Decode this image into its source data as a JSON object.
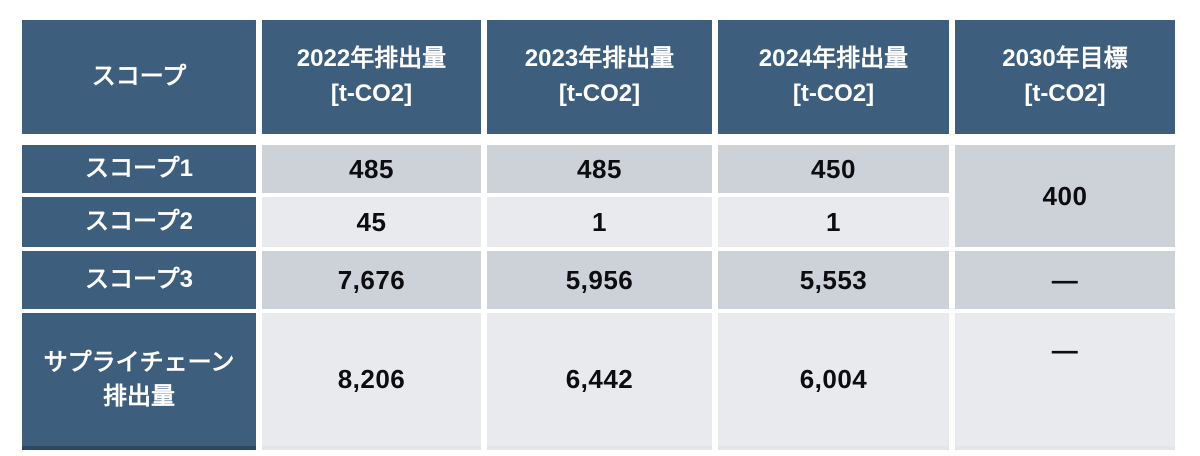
{
  "colors": {
    "header_blue": "#3D5E7D",
    "header_blue_bottom_edge": "#2C4861",
    "row_gray_dark": "#CDD1D8",
    "row_gray_light": "#E9EAED",
    "header_text": "#FFFFFF",
    "value_text": "#0D0D10",
    "page_background": "#FFFFFF"
  },
  "chart_data": {
    "type": "table",
    "columns": [
      "スコープ",
      "2022年排出量\n[t-CO2]",
      "2023年排出量\n[t-CO2]",
      "2024年排出量\n[t-CO2]",
      "2030年目標\n[t-CO2]"
    ],
    "rows": [
      {
        "label": "スコープ1",
        "values": [
          "485",
          "485",
          "450"
        ]
      },
      {
        "label": "スコープ2",
        "values": [
          "45",
          "1",
          "1"
        ]
      },
      {
        "label": "スコープ3",
        "values": [
          "7,676",
          "5,956",
          "5,553"
        ],
        "target": "―"
      },
      {
        "label": "サプライチェーン\n排出量",
        "values": [
          "8,206",
          "6,442",
          "6,004"
        ],
        "target": "―"
      }
    ],
    "merged_target": {
      "value": "400",
      "note_rows_spanned": [
        "スコープ1",
        "スコープ2"
      ]
    },
    "numeric": {
      "x": [
        "2022",
        "2023",
        "2024"
      ],
      "unit": "t-CO2",
      "series": [
        {
          "name": "スコープ1",
          "values": [
            485,
            485,
            450
          ]
        },
        {
          "name": "スコープ2",
          "values": [
            45,
            1,
            1
          ]
        },
        {
          "name": "スコープ3",
          "values": [
            7676,
            5956,
            5553
          ]
        },
        {
          "name": "サプライチェーン排出量",
          "values": [
            8206,
            6442,
            6004
          ]
        }
      ],
      "target_2030_scope1_scope2": 400
    }
  }
}
